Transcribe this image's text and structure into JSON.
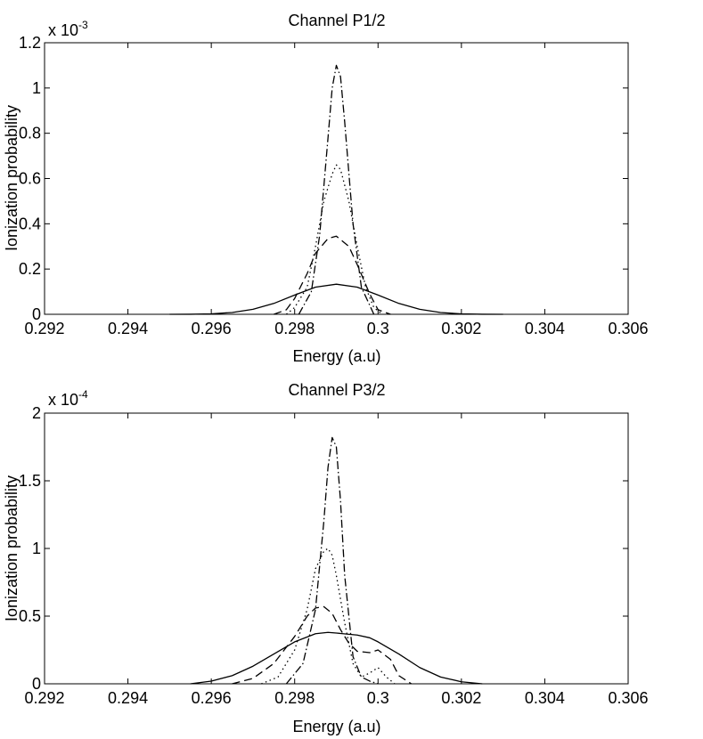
{
  "chart_data": [
    {
      "type": "line",
      "title": "Channel P1/2",
      "xlabel": "Energy (a.u)",
      "ylabel": "Ionization probability",
      "exponent_base": "x 10",
      "exponent_power": "-3",
      "xlim": [
        0.292,
        0.306
      ],
      "ylim": [
        0,
        1.2
      ],
      "xticks": [
        0.292,
        0.294,
        0.296,
        0.298,
        0.3,
        0.302,
        0.304,
        0.306
      ],
      "xtick_labels": [
        "0.292",
        "0.294",
        "0.296",
        "0.298",
        "0.3",
        "0.302",
        "0.304",
        "0.306"
      ],
      "yticks": [
        0,
        0.2,
        0.4,
        0.6,
        0.8,
        1,
        1.2
      ],
      "ytick_labels": [
        "0",
        "0.2",
        "0.4",
        "0.6",
        "0.8",
        "1",
        "1.2"
      ],
      "grid": false,
      "series": [
        {
          "style": "solid",
          "color": "#000000",
          "x": [
            0.295,
            0.2955,
            0.296,
            0.2965,
            0.297,
            0.2975,
            0.298,
            0.2985,
            0.299,
            0.2995,
            0.3,
            0.3005,
            0.301,
            0.3015,
            0.302,
            0.3025,
            0.303
          ],
          "y": [
            0.0,
            0.0003,
            0.002,
            0.008,
            0.022,
            0.048,
            0.085,
            0.12,
            0.133,
            0.12,
            0.085,
            0.048,
            0.022,
            0.008,
            0.002,
            0.0003,
            0.0
          ]
        },
        {
          "style": "dashed",
          "color": "#000000",
          "x": [
            0.2975,
            0.2978,
            0.298,
            0.2983,
            0.2985,
            0.2988,
            0.299,
            0.2993,
            0.2995,
            0.2998,
            0.3,
            0.3003
          ],
          "y": [
            0.0,
            0.02,
            0.07,
            0.18,
            0.27,
            0.335,
            0.345,
            0.3,
            0.22,
            0.09,
            0.02,
            0.0
          ]
        },
        {
          "style": "dotted",
          "color": "#000000",
          "x": [
            0.2978,
            0.298,
            0.2983,
            0.2985,
            0.2987,
            0.2989,
            0.299,
            0.2991,
            0.2993,
            0.2995,
            0.2997,
            0.2999,
            0.3001
          ],
          "y": [
            0.0,
            0.03,
            0.12,
            0.3,
            0.5,
            0.62,
            0.66,
            0.64,
            0.5,
            0.3,
            0.12,
            0.03,
            0.0
          ]
        },
        {
          "style": "dashdot",
          "color": "#000000",
          "x": [
            0.2981,
            0.2984,
            0.2986,
            0.2988,
            0.2989,
            0.299,
            0.2991,
            0.2992,
            0.2994,
            0.2996,
            0.2999
          ],
          "y": [
            0.0,
            0.1,
            0.35,
            0.78,
            1.0,
            1.1,
            1.05,
            0.85,
            0.4,
            0.12,
            0.0
          ]
        }
      ]
    },
    {
      "type": "line",
      "title": "Channel P3/2",
      "xlabel": "Energy (a.u)",
      "ylabel": "Ionization probability",
      "exponent_base": "x 10",
      "exponent_power": "-4",
      "xlim": [
        0.292,
        0.306
      ],
      "ylim": [
        0,
        2
      ],
      "xticks": [
        0.292,
        0.294,
        0.296,
        0.298,
        0.3,
        0.302,
        0.304,
        0.306
      ],
      "xtick_labels": [
        "0.292",
        "0.294",
        "0.296",
        "0.298",
        "0.3",
        "0.302",
        "0.304",
        "0.306"
      ],
      "yticks": [
        0,
        0.5,
        1,
        1.5,
        2
      ],
      "ytick_labels": [
        "0",
        "0.5",
        "1",
        "1.5",
        "2"
      ],
      "grid": false,
      "series": [
        {
          "style": "solid",
          "color": "#000000",
          "x": [
            0.2955,
            0.296,
            0.2965,
            0.297,
            0.2975,
            0.298,
            0.2985,
            0.2988,
            0.299,
            0.2995,
            0.2998,
            0.3,
            0.3005,
            0.301,
            0.3015,
            0.302,
            0.3025
          ],
          "y": [
            0.0,
            0.02,
            0.06,
            0.13,
            0.22,
            0.31,
            0.37,
            0.38,
            0.375,
            0.36,
            0.34,
            0.31,
            0.22,
            0.12,
            0.05,
            0.015,
            0.0
          ]
        },
        {
          "style": "dashed",
          "color": "#000000",
          "x": [
            0.2965,
            0.297,
            0.2975,
            0.298,
            0.2983,
            0.2985,
            0.2987,
            0.2989,
            0.2991,
            0.2993,
            0.2995,
            0.2998,
            0.3,
            0.3003,
            0.3005,
            0.3008
          ],
          "y": [
            0.0,
            0.04,
            0.15,
            0.35,
            0.5,
            0.56,
            0.57,
            0.52,
            0.4,
            0.3,
            0.24,
            0.23,
            0.25,
            0.18,
            0.06,
            0.0
          ]
        },
        {
          "style": "dotted",
          "color": "#000000",
          "x": [
            0.2972,
            0.2976,
            0.298,
            0.2983,
            0.2985,
            0.2987,
            0.2988,
            0.2989,
            0.299,
            0.2992,
            0.2994,
            0.2996,
            0.2998,
            0.3,
            0.3002,
            0.3004
          ],
          "y": [
            0.0,
            0.05,
            0.25,
            0.55,
            0.85,
            0.98,
            1.0,
            0.95,
            0.8,
            0.45,
            0.15,
            0.05,
            0.08,
            0.12,
            0.05,
            0.0
          ]
        },
        {
          "style": "dashdot",
          "color": "#000000",
          "x": [
            0.2978,
            0.2982,
            0.2985,
            0.2987,
            0.2988,
            0.2989,
            0.299,
            0.2991,
            0.2992,
            0.2994,
            0.2996,
            0.2998,
            0.3
          ],
          "y": [
            0.0,
            0.15,
            0.55,
            1.2,
            1.6,
            1.82,
            1.75,
            1.35,
            0.8,
            0.2,
            0.05,
            0.02,
            0.0
          ]
        }
      ]
    }
  ]
}
